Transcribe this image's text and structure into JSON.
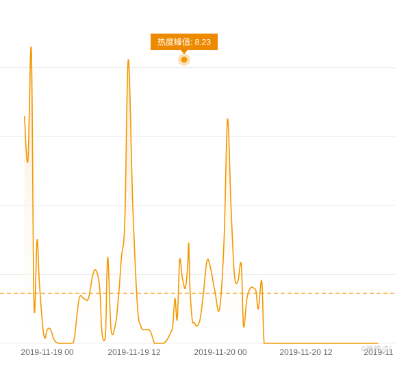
{
  "chart_data": {
    "type": "area",
    "title": "",
    "xlabel": "",
    "ylabel": "",
    "x_ticks": [
      "2019-11-19 00",
      "2019-11-19 12",
      "2019-11-20 00",
      "2019-11-20 12",
      "2019-11"
    ],
    "ylim": [
      0,
      10
    ],
    "grid": true,
    "series": [
      {
        "x": [
          -2.52,
          -2.14,
          -1.76,
          -1.46,
          -1.13,
          -0.88,
          -0.5,
          -0.25,
          0.0,
          0.38,
          0.76,
          1.26,
          1.77,
          2.27,
          2.78,
          3.03,
          3.54,
          4.04,
          4.55,
          5.05,
          5.43,
          5.81,
          6.06,
          6.44,
          6.69,
          7.07,
          7.58,
          7.96,
          8.21,
          8.59,
          8.97,
          9.47,
          9.98,
          10.36,
          10.61,
          10.86,
          11.11,
          11.24,
          11.49,
          11.87,
          12.25,
          12.5,
          12.88,
          13.26,
          13.64,
          13.89,
          14.14,
          14.39,
          14.65,
          14.9,
          15.03,
          15.28,
          15.53,
          15.66,
          15.78,
          16.04,
          16.29,
          16.54,
          16.92,
          17.3,
          17.68,
          18.06,
          18.56,
          19.07,
          19.57,
          19.95,
          20.33,
          20.71,
          21.09,
          21.47,
          21.72,
          22.1,
          22.48,
          22.86,
          23.11,
          23.36,
          23.74,
          24.0,
          24.37,
          24.75,
          25.13,
          25.51,
          25.76,
          26.14,
          26.39,
          26.64,
          27.02,
          27.4,
          27.78,
          28.04,
          28.42,
          28.8,
          29.17,
          29.55,
          29.81,
          30.06,
          30.44,
          30.82,
          31.32,
          31.7,
          31.95,
          32.21,
          32.71,
          33.09,
          33.47,
          33.85,
          34.1,
          34.6,
          34.98,
          35.36,
          35.74,
          35.99,
          36.37,
          36.62
        ],
        "y": [
          6.6,
          5.3,
          8.5,
          1.1,
          3.0,
          1.8,
          0.5,
          0.15,
          0.4,
          0.4,
          0.1,
          0.0,
          0.0,
          0.0,
          0.0,
          0.2,
          1.3,
          1.3,
          1.3,
          2.0,
          2.1,
          1.6,
          0.3,
          0.2,
          2.5,
          0.4,
          0.6,
          1.6,
          2.5,
          3.6,
          8.23,
          4.0,
          1.1,
          0.5,
          0.4,
          0.4,
          0.4,
          0.4,
          0.3,
          0.0,
          0.0,
          0.0,
          0.0,
          0.1,
          0.3,
          0.5,
          1.3,
          0.7,
          2.4,
          2.0,
          1.8,
          1.6,
          2.2,
          2.9,
          1.7,
          0.7,
          0.6,
          0.5,
          0.7,
          1.5,
          2.4,
          2.2,
          1.5,
          1.0,
          3.0,
          6.5,
          4.0,
          2.0,
          1.8,
          2.3,
          0.5,
          1.3,
          1.6,
          1.6,
          1.5,
          1.0,
          1.8,
          0.0,
          0.0,
          0.0,
          0.0,
          0.0,
          0.0,
          0.0,
          0.0,
          0.0,
          0.0,
          0.0,
          0.0,
          0.0,
          0.0,
          0.0,
          0.0,
          0.0,
          0.0,
          0.0,
          0.0,
          0.0,
          0.0,
          0.0,
          0.0,
          0.0,
          0.0,
          0.0,
          0.0,
          0.0,
          0.0,
          0.0,
          0.0,
          0.0,
          0.0,
          0.0,
          0.0,
          0.0
        ]
      }
    ],
    "average_line": 1.45,
    "peak": {
      "label": "热度峰值: 8.23",
      "x": 10.7,
      "y": 8.23
    },
    "watermark": "©微热点(",
    "colors": {
      "line": "#f39800",
      "area_top": "#fbe3c4",
      "area_bottom": "#ffffff",
      "grid": "#ececec",
      "average": "#f5a623",
      "label_bg": "#ee8a00"
    }
  }
}
